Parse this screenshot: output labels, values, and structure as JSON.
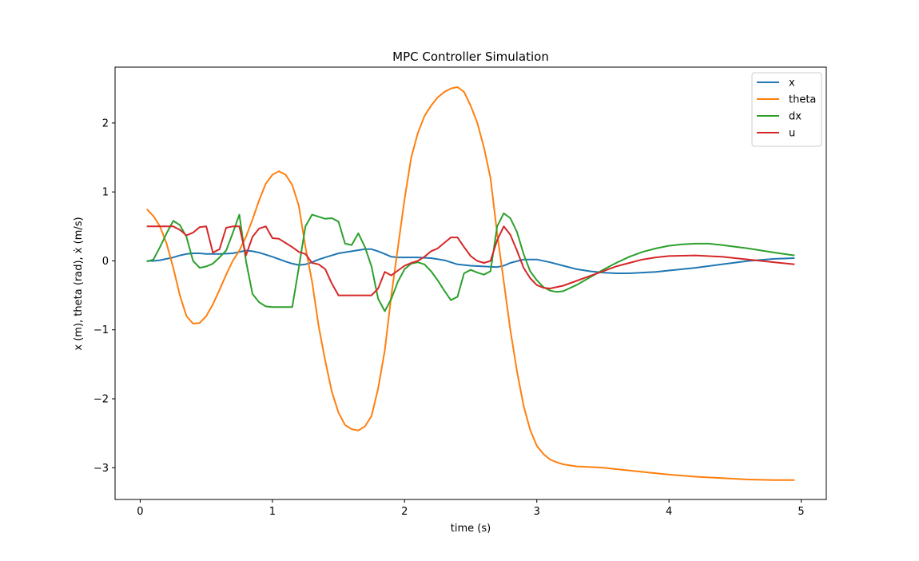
{
  "chart_data": {
    "type": "line",
    "title": "MPC Controller Simulation",
    "xlabel": "time (s)",
    "ylabel": "x (m), theta (rad), ẋ (m/s)",
    "xlim": [
      -0.19,
      5.19
    ],
    "ylim": [
      -3.46,
      2.81
    ],
    "x_ticks": [
      0,
      1,
      2,
      3,
      4,
      5
    ],
    "y_ticks": [
      -3,
      -2,
      -1,
      0,
      1,
      2
    ],
    "y_tick_labels": [
      "−3",
      "−2",
      "−1",
      "0",
      "1",
      "2"
    ],
    "grid": false,
    "legend_position": "top-right",
    "series": [
      {
        "name": "x",
        "color": "#1f77b4",
        "points": [
          [
            0.05,
            0.0
          ],
          [
            0.1,
            0.0
          ],
          [
            0.15,
            0.01
          ],
          [
            0.2,
            0.03
          ],
          [
            0.25,
            0.05
          ],
          [
            0.3,
            0.08
          ],
          [
            0.35,
            0.1
          ],
          [
            0.4,
            0.11
          ],
          [
            0.45,
            0.11
          ],
          [
            0.5,
            0.1
          ],
          [
            0.6,
            0.1
          ],
          [
            0.7,
            0.11
          ],
          [
            0.8,
            0.15
          ],
          [
            0.85,
            0.14
          ],
          [
            0.9,
            0.12
          ],
          [
            1.0,
            0.06
          ],
          [
            1.1,
            -0.01
          ],
          [
            1.15,
            -0.04
          ],
          [
            1.2,
            -0.06
          ],
          [
            1.25,
            -0.05
          ],
          [
            1.3,
            -0.02
          ],
          [
            1.35,
            0.02
          ],
          [
            1.4,
            0.05
          ],
          [
            1.45,
            0.08
          ],
          [
            1.5,
            0.11
          ],
          [
            1.6,
            0.14
          ],
          [
            1.7,
            0.17
          ],
          [
            1.75,
            0.17
          ],
          [
            1.8,
            0.14
          ],
          [
            1.85,
            0.1
          ],
          [
            1.9,
            0.06
          ],
          [
            1.95,
            0.05
          ],
          [
            2.0,
            0.05
          ],
          [
            2.1,
            0.05
          ],
          [
            2.2,
            0.04
          ],
          [
            2.3,
            0.01
          ],
          [
            2.4,
            -0.05
          ],
          [
            2.5,
            -0.07
          ],
          [
            2.6,
            -0.08
          ],
          [
            2.7,
            -0.09
          ],
          [
            2.75,
            -0.07
          ],
          [
            2.8,
            -0.03
          ],
          [
            2.9,
            0.02
          ],
          [
            3.0,
            0.02
          ],
          [
            3.1,
            -0.02
          ],
          [
            3.2,
            -0.07
          ],
          [
            3.3,
            -0.12
          ],
          [
            3.4,
            -0.15
          ],
          [
            3.5,
            -0.17
          ],
          [
            3.6,
            -0.18
          ],
          [
            3.7,
            -0.18
          ],
          [
            3.8,
            -0.17
          ],
          [
            3.9,
            -0.16
          ],
          [
            4.0,
            -0.14
          ],
          [
            4.2,
            -0.1
          ],
          [
            4.4,
            -0.05
          ],
          [
            4.6,
            0.0
          ],
          [
            4.8,
            0.03
          ],
          [
            4.95,
            0.04
          ]
        ]
      },
      {
        "name": "theta",
        "color": "#ff7f0e",
        "points": [
          [
            0.05,
            0.75
          ],
          [
            0.1,
            0.65
          ],
          [
            0.15,
            0.5
          ],
          [
            0.2,
            0.25
          ],
          [
            0.25,
            -0.1
          ],
          [
            0.3,
            -0.5
          ],
          [
            0.35,
            -0.8
          ],
          [
            0.4,
            -0.91
          ],
          [
            0.45,
            -0.9
          ],
          [
            0.5,
            -0.8
          ],
          [
            0.55,
            -0.63
          ],
          [
            0.6,
            -0.42
          ],
          [
            0.65,
            -0.2
          ],
          [
            0.7,
            0.0
          ],
          [
            0.75,
            0.15
          ],
          [
            0.8,
            0.35
          ],
          [
            0.85,
            0.6
          ],
          [
            0.9,
            0.88
          ],
          [
            0.95,
            1.12
          ],
          [
            1.0,
            1.25
          ],
          [
            1.05,
            1.3
          ],
          [
            1.1,
            1.25
          ],
          [
            1.15,
            1.1
          ],
          [
            1.2,
            0.8
          ],
          [
            1.25,
            0.2
          ],
          [
            1.3,
            -0.3
          ],
          [
            1.35,
            -0.95
          ],
          [
            1.4,
            -1.45
          ],
          [
            1.45,
            -1.9
          ],
          [
            1.5,
            -2.2
          ],
          [
            1.55,
            -2.38
          ],
          [
            1.6,
            -2.44
          ],
          [
            1.65,
            -2.46
          ],
          [
            1.7,
            -2.4
          ],
          [
            1.75,
            -2.25
          ],
          [
            1.8,
            -1.85
          ],
          [
            1.85,
            -1.3
          ],
          [
            1.9,
            -0.5
          ],
          [
            1.95,
            0.2
          ],
          [
            2.0,
            0.9
          ],
          [
            2.05,
            1.5
          ],
          [
            2.1,
            1.85
          ],
          [
            2.15,
            2.1
          ],
          [
            2.2,
            2.25
          ],
          [
            2.25,
            2.37
          ],
          [
            2.3,
            2.45
          ],
          [
            2.35,
            2.5
          ],
          [
            2.4,
            2.52
          ],
          [
            2.45,
            2.45
          ],
          [
            2.5,
            2.25
          ],
          [
            2.55,
            2.0
          ],
          [
            2.6,
            1.65
          ],
          [
            2.65,
            1.2
          ],
          [
            2.7,
            0.4
          ],
          [
            2.75,
            -0.3
          ],
          [
            2.8,
            -1.0
          ],
          [
            2.85,
            -1.6
          ],
          [
            2.9,
            -2.1
          ],
          [
            2.95,
            -2.45
          ],
          [
            3.0,
            -2.68
          ],
          [
            3.05,
            -2.8
          ],
          [
            3.1,
            -2.88
          ],
          [
            3.15,
            -2.92
          ],
          [
            3.2,
            -2.95
          ],
          [
            3.3,
            -2.98
          ],
          [
            3.4,
            -2.99
          ],
          [
            3.5,
            -3.0
          ],
          [
            3.6,
            -3.02
          ],
          [
            3.8,
            -3.06
          ],
          [
            4.0,
            -3.1
          ],
          [
            4.2,
            -3.13
          ],
          [
            4.4,
            -3.15
          ],
          [
            4.6,
            -3.17
          ],
          [
            4.8,
            -3.18
          ],
          [
            4.95,
            -3.18
          ]
        ]
      },
      {
        "name": "dx",
        "color": "#2ca02c",
        "points": [
          [
            0.05,
            -0.01
          ],
          [
            0.1,
            0.02
          ],
          [
            0.15,
            0.2
          ],
          [
            0.2,
            0.4
          ],
          [
            0.25,
            0.58
          ],
          [
            0.3,
            0.52
          ],
          [
            0.35,
            0.35
          ],
          [
            0.4,
            0.0
          ],
          [
            0.45,
            -0.1
          ],
          [
            0.5,
            -0.08
          ],
          [
            0.55,
            -0.04
          ],
          [
            0.6,
            0.05
          ],
          [
            0.65,
            0.15
          ],
          [
            0.7,
            0.4
          ],
          [
            0.75,
            0.67
          ],
          [
            0.8,
            0.0
          ],
          [
            0.85,
            -0.48
          ],
          [
            0.9,
            -0.6
          ],
          [
            0.95,
            -0.66
          ],
          [
            1.0,
            -0.67
          ],
          [
            1.05,
            -0.67
          ],
          [
            1.15,
            -0.67
          ],
          [
            1.2,
            -0.1
          ],
          [
            1.25,
            0.5
          ],
          [
            1.3,
            0.67
          ],
          [
            1.35,
            0.64
          ],
          [
            1.4,
            0.61
          ],
          [
            1.45,
            0.62
          ],
          [
            1.5,
            0.57
          ],
          [
            1.55,
            0.25
          ],
          [
            1.6,
            0.23
          ],
          [
            1.65,
            0.4
          ],
          [
            1.7,
            0.2
          ],
          [
            1.75,
            -0.08
          ],
          [
            1.8,
            -0.55
          ],
          [
            1.85,
            -0.73
          ],
          [
            1.9,
            -0.55
          ],
          [
            1.95,
            -0.3
          ],
          [
            2.0,
            -0.12
          ],
          [
            2.05,
            -0.04
          ],
          [
            2.1,
            -0.02
          ],
          [
            2.15,
            -0.05
          ],
          [
            2.2,
            -0.15
          ],
          [
            2.25,
            -0.28
          ],
          [
            2.3,
            -0.43
          ],
          [
            2.35,
            -0.57
          ],
          [
            2.4,
            -0.52
          ],
          [
            2.45,
            -0.18
          ],
          [
            2.5,
            -0.13
          ],
          [
            2.55,
            -0.17
          ],
          [
            2.6,
            -0.2
          ],
          [
            2.65,
            -0.15
          ],
          [
            2.7,
            0.5
          ],
          [
            2.75,
            0.69
          ],
          [
            2.8,
            0.62
          ],
          [
            2.85,
            0.42
          ],
          [
            2.9,
            0.1
          ],
          [
            2.95,
            -0.15
          ],
          [
            3.0,
            -0.28
          ],
          [
            3.05,
            -0.38
          ],
          [
            3.1,
            -0.43
          ],
          [
            3.15,
            -0.45
          ],
          [
            3.2,
            -0.44
          ],
          [
            3.3,
            -0.35
          ],
          [
            3.4,
            -0.24
          ],
          [
            3.5,
            -0.13
          ],
          [
            3.6,
            -0.03
          ],
          [
            3.7,
            0.06
          ],
          [
            3.8,
            0.13
          ],
          [
            3.9,
            0.18
          ],
          [
            4.0,
            0.22
          ],
          [
            4.1,
            0.24
          ],
          [
            4.2,
            0.25
          ],
          [
            4.3,
            0.25
          ],
          [
            4.4,
            0.23
          ],
          [
            4.6,
            0.18
          ],
          [
            4.8,
            0.12
          ],
          [
            4.95,
            0.08
          ]
        ]
      },
      {
        "name": "u",
        "color": "#d62728",
        "points": [
          [
            0.05,
            0.5
          ],
          [
            0.1,
            0.5
          ],
          [
            0.15,
            0.5
          ],
          [
            0.2,
            0.5
          ],
          [
            0.25,
            0.5
          ],
          [
            0.3,
            0.45
          ],
          [
            0.35,
            0.37
          ],
          [
            0.4,
            0.41
          ],
          [
            0.45,
            0.49
          ],
          [
            0.5,
            0.5
          ],
          [
            0.55,
            0.12
          ],
          [
            0.6,
            0.17
          ],
          [
            0.65,
            0.48
          ],
          [
            0.7,
            0.5
          ],
          [
            0.75,
            0.5
          ],
          [
            0.8,
            0.08
          ],
          [
            0.85,
            0.35
          ],
          [
            0.9,
            0.47
          ],
          [
            0.95,
            0.5
          ],
          [
            1.0,
            0.33
          ],
          [
            1.05,
            0.32
          ],
          [
            1.1,
            0.26
          ],
          [
            1.15,
            0.2
          ],
          [
            1.2,
            0.13
          ],
          [
            1.25,
            0.1
          ],
          [
            1.3,
            -0.03
          ],
          [
            1.35,
            -0.05
          ],
          [
            1.4,
            -0.12
          ],
          [
            1.45,
            -0.33
          ],
          [
            1.5,
            -0.5
          ],
          [
            1.55,
            -0.5
          ],
          [
            1.6,
            -0.5
          ],
          [
            1.65,
            -0.5
          ],
          [
            1.7,
            -0.5
          ],
          [
            1.75,
            -0.5
          ],
          [
            1.8,
            -0.4
          ],
          [
            1.85,
            -0.16
          ],
          [
            1.9,
            -0.21
          ],
          [
            1.95,
            -0.14
          ],
          [
            2.0,
            -0.07
          ],
          [
            2.05,
            -0.03
          ],
          [
            2.1,
            0.0
          ],
          [
            2.15,
            0.06
          ],
          [
            2.2,
            0.14
          ],
          [
            2.25,
            0.18
          ],
          [
            2.3,
            0.26
          ],
          [
            2.35,
            0.34
          ],
          [
            2.4,
            0.34
          ],
          [
            2.45,
            0.2
          ],
          [
            2.5,
            0.07
          ],
          [
            2.55,
            0.0
          ],
          [
            2.6,
            -0.03
          ],
          [
            2.65,
            0.0
          ],
          [
            2.7,
            0.3
          ],
          [
            2.75,
            0.5
          ],
          [
            2.8,
            0.38
          ],
          [
            2.85,
            0.15
          ],
          [
            2.9,
            -0.1
          ],
          [
            2.95,
            -0.25
          ],
          [
            3.0,
            -0.35
          ],
          [
            3.05,
            -0.39
          ],
          [
            3.1,
            -0.4
          ],
          [
            3.2,
            -0.36
          ],
          [
            3.3,
            -0.29
          ],
          [
            3.4,
            -0.22
          ],
          [
            3.5,
            -0.15
          ],
          [
            3.6,
            -0.08
          ],
          [
            3.7,
            -0.03
          ],
          [
            3.8,
            0.02
          ],
          [
            3.9,
            0.05
          ],
          [
            4.0,
            0.07
          ],
          [
            4.2,
            0.08
          ],
          [
            4.4,
            0.06
          ],
          [
            4.6,
            0.02
          ],
          [
            4.8,
            -0.02
          ],
          [
            4.95,
            -0.05
          ]
        ]
      }
    ]
  }
}
